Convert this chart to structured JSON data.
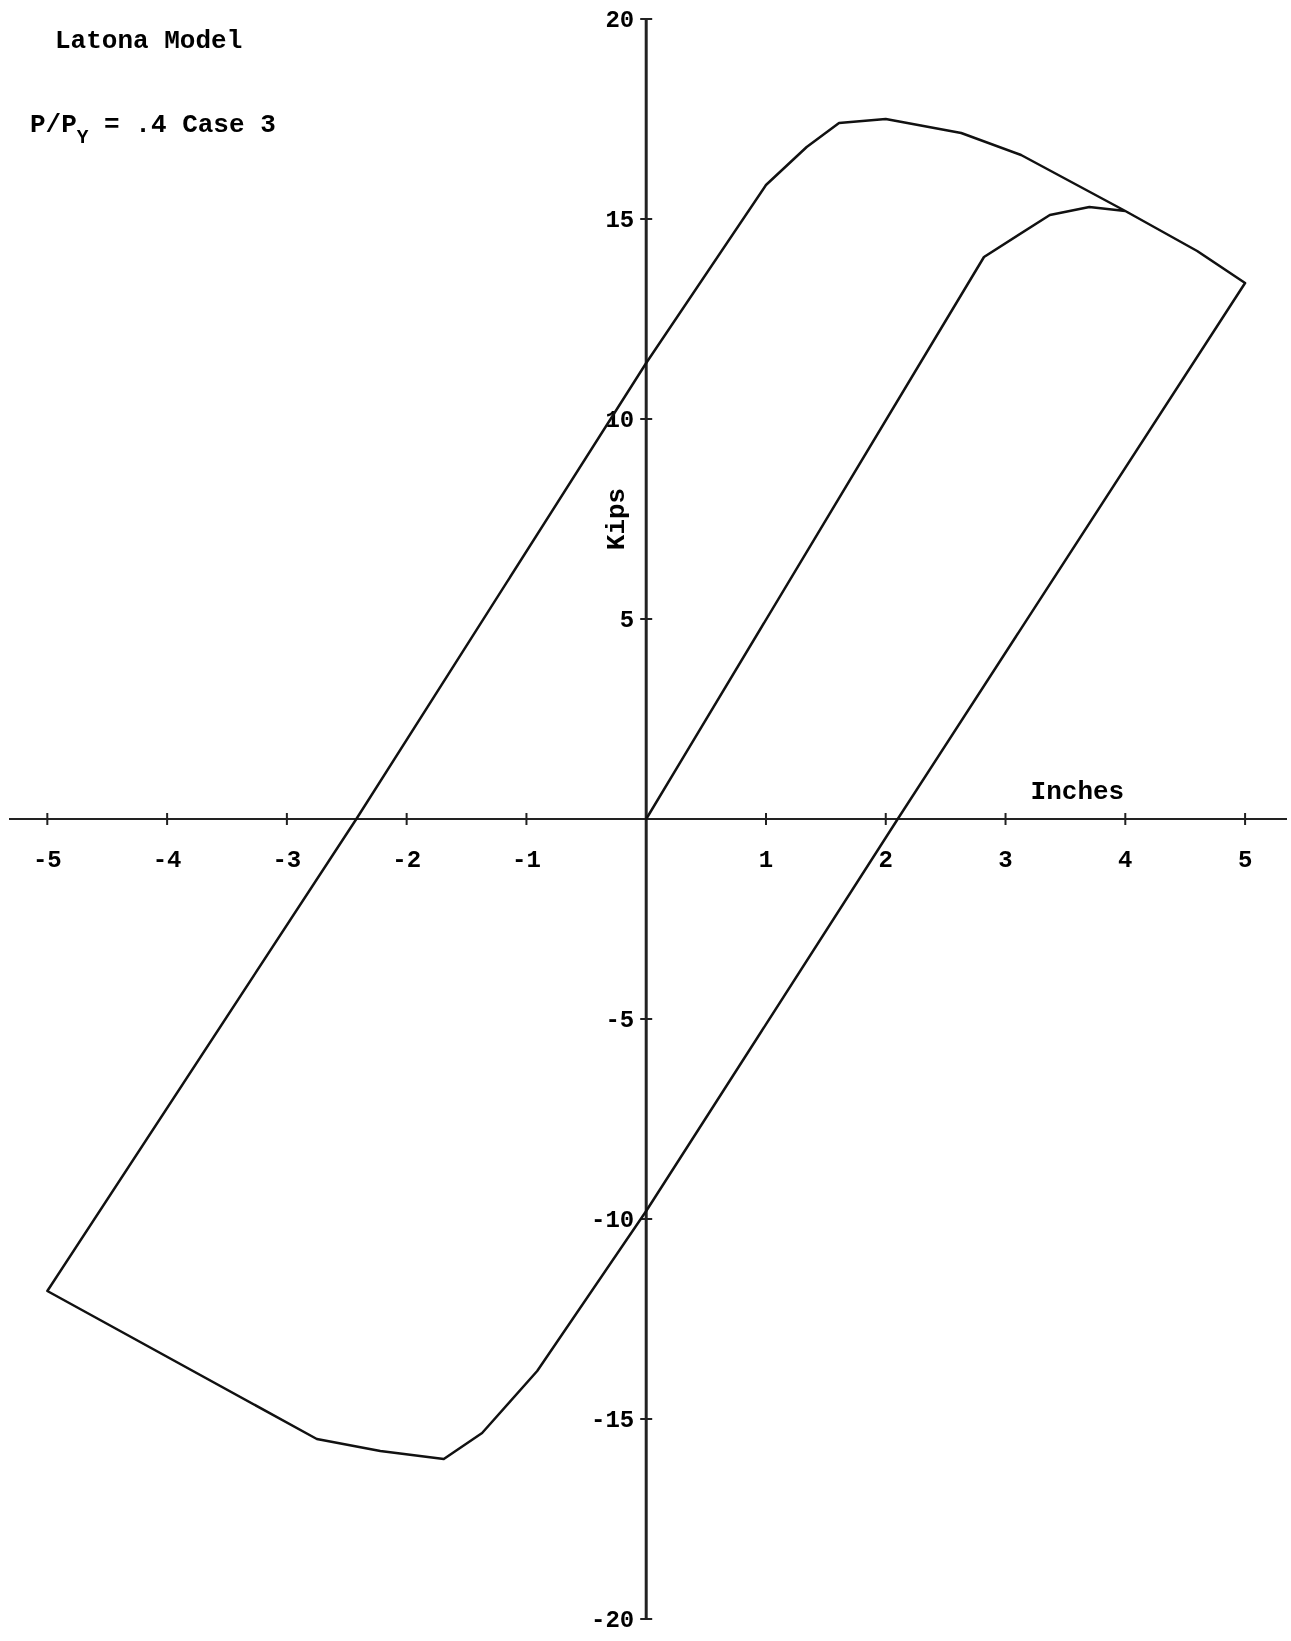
{
  "chart_data": {
    "type": "line",
    "title": "Latona Model",
    "subtitle": "P/P$_{Y}$ = .4  Case 3",
    "xlabel": "Inches",
    "ylabel": "Kips",
    "x": [
      0,
      2.82,
      3.37,
      3.7,
      4.0,
      4.6,
      5.0,
      2.1,
      0,
      -0.91,
      -1.37,
      -1.69,
      -2.22,
      -2.75,
      -5.0,
      -2.42,
      0,
      1.0,
      1.34,
      1.61,
      2.0,
      2.63,
      3.13,
      4.0,
      4.6,
      5.0
    ],
    "series": [
      {
        "color": "#111111",
        "values": [
          0,
          14.05,
          15.1,
          15.3,
          15.2,
          14.2,
          13.4,
          0,
          -9.8,
          -13.8,
          -15.35,
          -16.0,
          -15.8,
          -15.5,
          -11.8,
          0,
          11.4,
          15.85,
          16.8,
          17.4,
          17.5,
          17.15,
          16.6,
          15.2,
          14.2,
          13.4
        ]
      }
    ],
    "xlim": [
      -5.32,
      5.35
    ],
    "ylim": [
      -20,
      20
    ],
    "xticks": [
      -5,
      -4,
      -3,
      -2,
      -1,
      1,
      2,
      3,
      4,
      5
    ],
    "yticks": [
      -20,
      -15,
      -10,
      -5,
      5,
      10,
      15,
      20
    ],
    "marker": "none",
    "line_style": "solid"
  }
}
